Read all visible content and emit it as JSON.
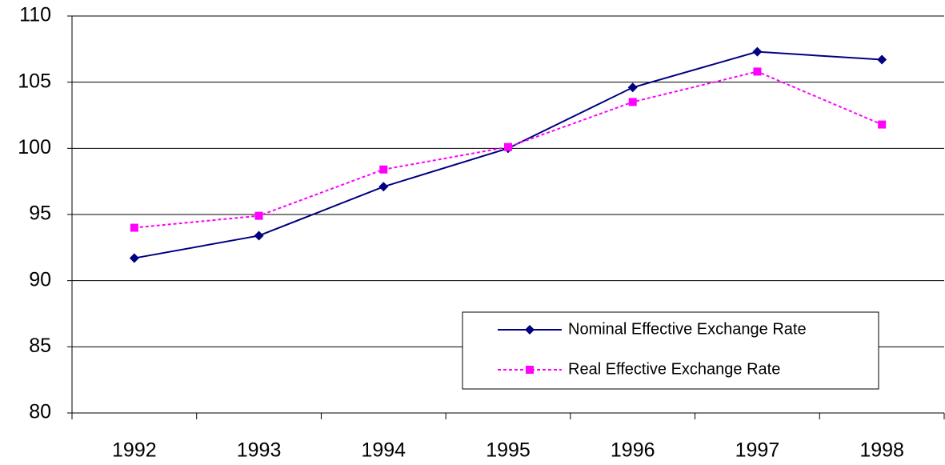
{
  "chart_data": {
    "type": "line",
    "categories": [
      "1992",
      "1993",
      "1994",
      "1995",
      "1996",
      "1997",
      "1998"
    ],
    "series": [
      {
        "name": "Nominal Effective Exchange Rate",
        "color": "#000080",
        "marker": "diamond",
        "dash": false,
        "values": [
          91.7,
          93.4,
          97.1,
          100.0,
          104.6,
          107.3,
          106.7
        ]
      },
      {
        "name": "Real Effective Exchange Rate",
        "color": "#ff00ff",
        "marker": "square",
        "dash": true,
        "values": [
          94.0,
          94.9,
          98.4,
          100.1,
          103.5,
          105.8,
          101.8
        ]
      }
    ],
    "ylim": [
      80,
      110
    ],
    "yticks": [
      80,
      85,
      90,
      95,
      100,
      105,
      110
    ],
    "grid": true,
    "legend": "lower right"
  }
}
